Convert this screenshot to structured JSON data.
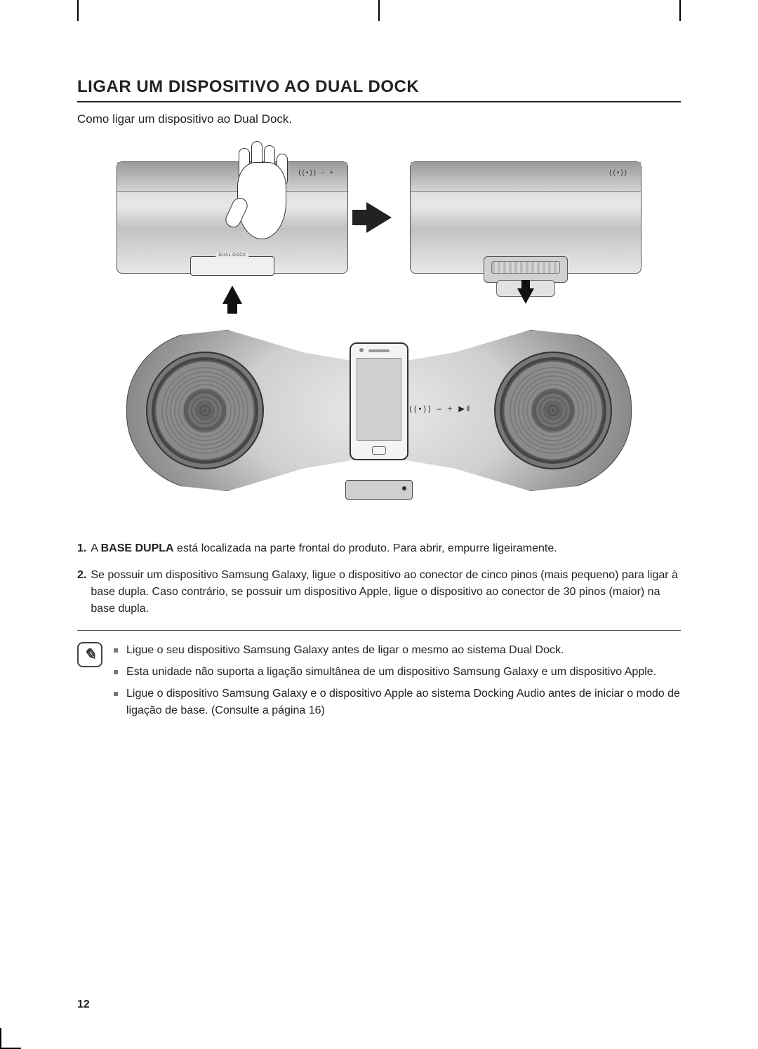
{
  "heading": "LIGAR UM DISPOSITIVO AO DUAL DOCK",
  "subtitle": "Como ligar um dispositivo ao Dual Dock.",
  "fig1": {
    "slot_label": "DUAL DOCK",
    "top_icons": "((•))   –   +"
  },
  "fig2": {
    "icons_right": "((•))"
  },
  "speaker": {
    "controls": "((•))   –   +   ▶ǁ"
  },
  "steps": [
    {
      "num": "1.",
      "lead": "A ",
      "strong": "BASE DUPLA",
      "rest": " está localizada na parte frontal do produto. Para abrir, empurre ligeiramente."
    },
    {
      "num": "2.",
      "lead": "",
      "strong": "",
      "rest": "Se possuir um dispositivo Samsung Galaxy, ligue o dispositivo ao conector de cinco pinos (mais pequeno) para ligar à base dupla. Caso contrário, se possuir um dispositivo Apple, ligue o dispositivo ao conector de 30 pinos (maior) na base dupla."
    }
  ],
  "notes": [
    "Ligue o seu dispositivo Samsung Galaxy antes de ligar o mesmo ao sistema Dual Dock.",
    "Esta unidade não suporta a ligação simultânea de um dispositivo Samsung Galaxy e um dispositivo Apple.",
    "Ligue o dispositivo Samsung Galaxy e o dispositivo Apple ao sistema Docking Audio antes de iniciar o modo de ligação de base. (Consulte a página 16)"
  ],
  "page_number": "12",
  "note_glyph": "✎"
}
